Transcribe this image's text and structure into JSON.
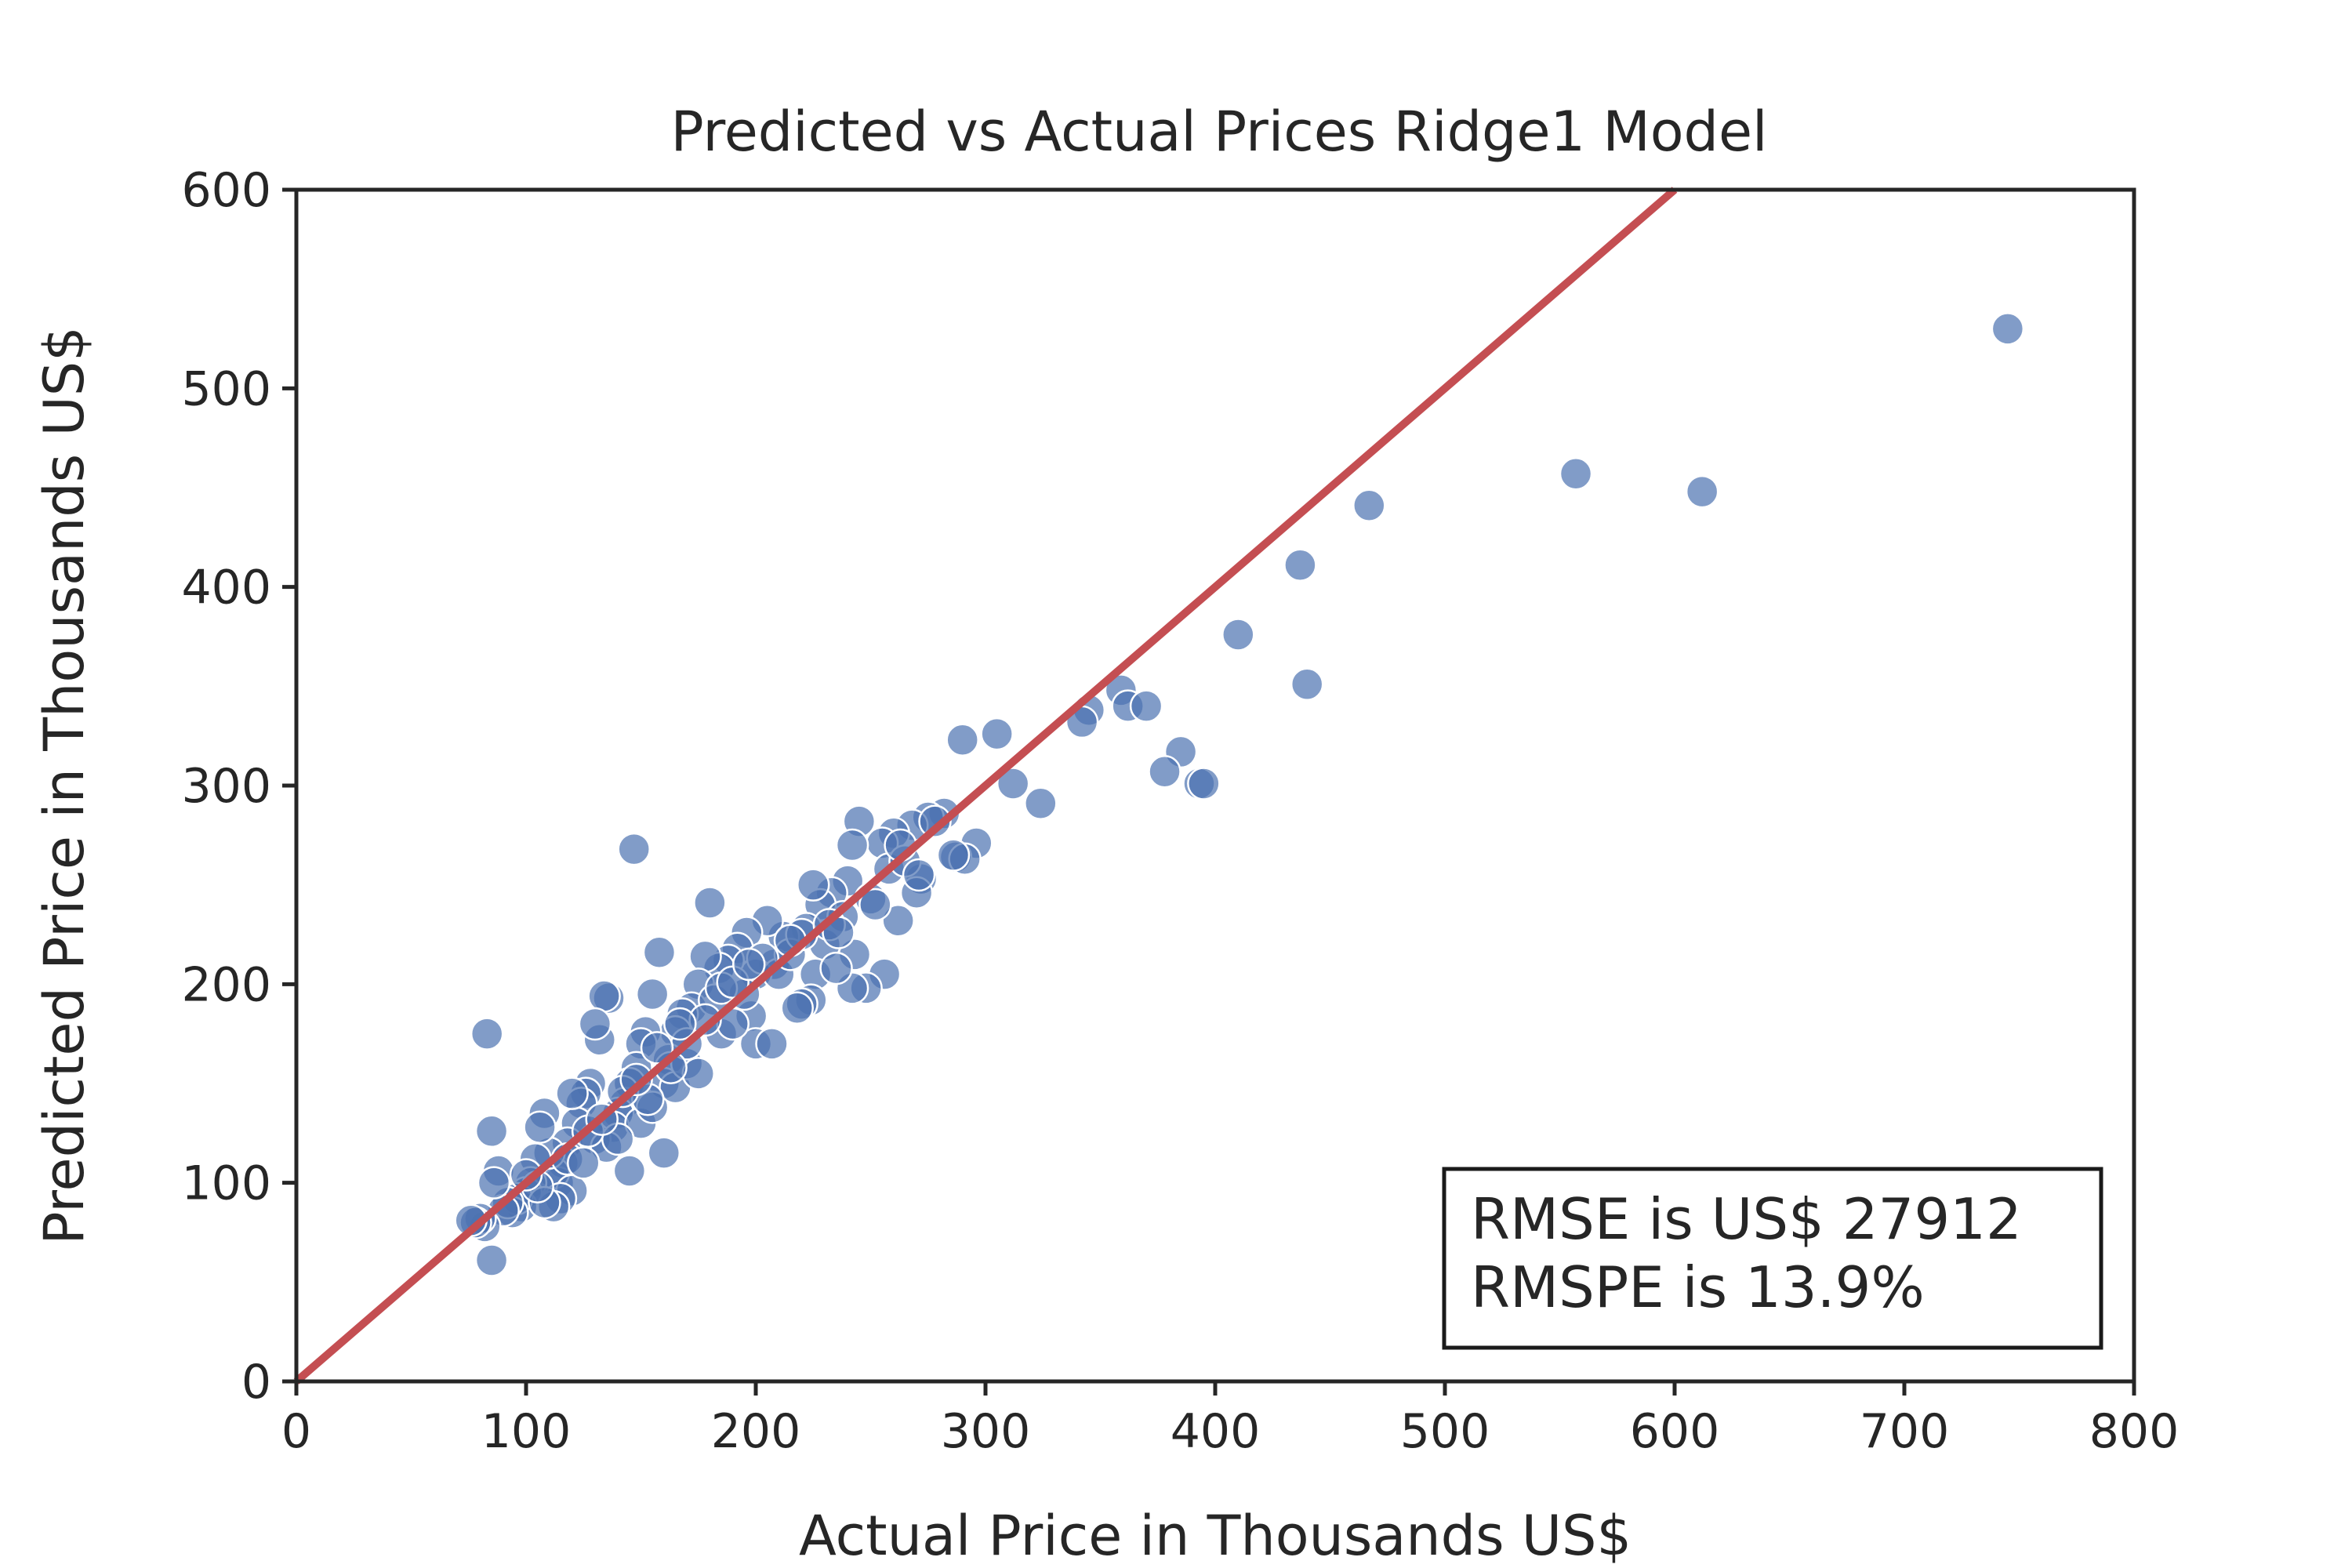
{
  "chart_data": {
    "type": "scatter",
    "title": "Predicted vs Actual Prices Ridge1 Model",
    "xlabel": "Actual Price in Thousands US$",
    "ylabel": "Predicted Price in Thousands US$",
    "xlim": [
      0,
      800
    ],
    "ylim": [
      0,
      600
    ],
    "xticks": [
      "0",
      "100",
      "200",
      "300",
      "400",
      "500",
      "600",
      "700",
      "800"
    ],
    "yticks": [
      "0",
      "100",
      "200",
      "300",
      "400",
      "500",
      "600"
    ],
    "grid": false,
    "point_color": "#4C72B0",
    "line_color": "#C44E52",
    "reference_line": {
      "x": [
        0,
        600
      ],
      "y": [
        0,
        600
      ]
    },
    "annotation": [
      "RMSE is US$ 27912",
      "RMSPE is 13.9%"
    ],
    "annotation_placement": "bottom-right",
    "points": [
      [
        745,
        530
      ],
      [
        557,
        457
      ],
      [
        612,
        448
      ],
      [
        467,
        441
      ],
      [
        437,
        411
      ],
      [
        410,
        376
      ],
      [
        440,
        351
      ],
      [
        359,
        348
      ],
      [
        362,
        340
      ],
      [
        370,
        340
      ],
      [
        345,
        338
      ],
      [
        342,
        332
      ],
      [
        385,
        317
      ],
      [
        378,
        307
      ],
      [
        393,
        301
      ],
      [
        395,
        301
      ],
      [
        290,
        323
      ],
      [
        305,
        326
      ],
      [
        312,
        301
      ],
      [
        324,
        291
      ],
      [
        296,
        271
      ],
      [
        287,
        264
      ],
      [
        291,
        263
      ],
      [
        272,
        253
      ],
      [
        270,
        246
      ],
      [
        262,
        232
      ],
      [
        256,
        205
      ],
      [
        248,
        198
      ],
      [
        242,
        198
      ],
      [
        282,
        286
      ],
      [
        275,
        284
      ],
      [
        268,
        280
      ],
      [
        260,
        276
      ],
      [
        255,
        271
      ],
      [
        245,
        282
      ],
      [
        242,
        270
      ],
      [
        240,
        252
      ],
      [
        233,
        246
      ],
      [
        228,
        240
      ],
      [
        225,
        250
      ],
      [
        222,
        228
      ],
      [
        230,
        220
      ],
      [
        226,
        205
      ],
      [
        224,
        192
      ],
      [
        220,
        190
      ],
      [
        218,
        188
      ],
      [
        238,
        234
      ],
      [
        243,
        215
      ],
      [
        235,
        208
      ],
      [
        212,
        224
      ],
      [
        208,
        210
      ],
      [
        205,
        232
      ],
      [
        200,
        205
      ],
      [
        198,
        184
      ],
      [
        200,
        170
      ],
      [
        207,
        170
      ],
      [
        196,
        226
      ],
      [
        192,
        218
      ],
      [
        188,
        212
      ],
      [
        184,
        208
      ],
      [
        180,
        241
      ],
      [
        178,
        214
      ],
      [
        175,
        200
      ],
      [
        172,
        188
      ],
      [
        168,
        185
      ],
      [
        165,
        176
      ],
      [
        162,
        162
      ],
      [
        160,
        150
      ],
      [
        158,
        216
      ],
      [
        155,
        195
      ],
      [
        152,
        176
      ],
      [
        150,
        170
      ],
      [
        147,
        268
      ],
      [
        148,
        158
      ],
      [
        145,
        150
      ],
      [
        143,
        140
      ],
      [
        140,
        135
      ],
      [
        138,
        128
      ],
      [
        136,
        193
      ],
      [
        134,
        194
      ],
      [
        132,
        172
      ],
      [
        130,
        180
      ],
      [
        128,
        150
      ],
      [
        126,
        145
      ],
      [
        124,
        140
      ],
      [
        122,
        130
      ],
      [
        120,
        145
      ],
      [
        118,
        120
      ],
      [
        116,
        110
      ],
      [
        114,
        100
      ],
      [
        112,
        105
      ],
      [
        110,
        115
      ],
      [
        108,
        135
      ],
      [
        106,
        128
      ],
      [
        104,
        112
      ],
      [
        102,
        100
      ],
      [
        100,
        95
      ],
      [
        98,
        88
      ],
      [
        96,
        92
      ],
      [
        94,
        85
      ],
      [
        92,
        90
      ],
      [
        90,
        86
      ],
      [
        88,
        106
      ],
      [
        86,
        100
      ],
      [
        85,
        126
      ],
      [
        83,
        175
      ],
      [
        85,
        61
      ],
      [
        82,
        78
      ],
      [
        80,
        82
      ],
      [
        78,
        80
      ],
      [
        76,
        81
      ],
      [
        160,
        115
      ],
      [
        145,
        106
      ],
      [
        120,
        96
      ],
      [
        115,
        92
      ],
      [
        130,
        122
      ],
      [
        135,
        118
      ],
      [
        150,
        130
      ],
      [
        155,
        138
      ],
      [
        165,
        148
      ],
      [
        170,
        160
      ],
      [
        175,
        155
      ],
      [
        185,
        175
      ],
      [
        190,
        180
      ],
      [
        195,
        195
      ],
      [
        210,
        205
      ],
      [
        215,
        215
      ],
      [
        220,
        225
      ],
      [
        232,
        230
      ],
      [
        250,
        243
      ],
      [
        258,
        258
      ],
      [
        265,
        262
      ],
      [
        278,
        282
      ],
      [
        203,
        213
      ],
      [
        182,
        192
      ],
      [
        178,
        182
      ],
      [
        170,
        170
      ],
      [
        163,
        158
      ],
      [
        157,
        168
      ],
      [
        153,
        142
      ],
      [
        140,
        122
      ],
      [
        127,
        126
      ],
      [
        118,
        112
      ],
      [
        112,
        88
      ],
      [
        108,
        90
      ],
      [
        105,
        98
      ],
      [
        100,
        104
      ],
      [
        125,
        110
      ],
      [
        133,
        132
      ],
      [
        142,
        146
      ],
      [
        148,
        152
      ],
      [
        167,
        180
      ],
      [
        185,
        198
      ],
      [
        190,
        201
      ],
      [
        197,
        210
      ],
      [
        215,
        222
      ],
      [
        236,
        226
      ],
      [
        252,
        240
      ],
      [
        263,
        270
      ],
      [
        271,
        255
      ],
      [
        286,
        265
      ]
    ]
  }
}
